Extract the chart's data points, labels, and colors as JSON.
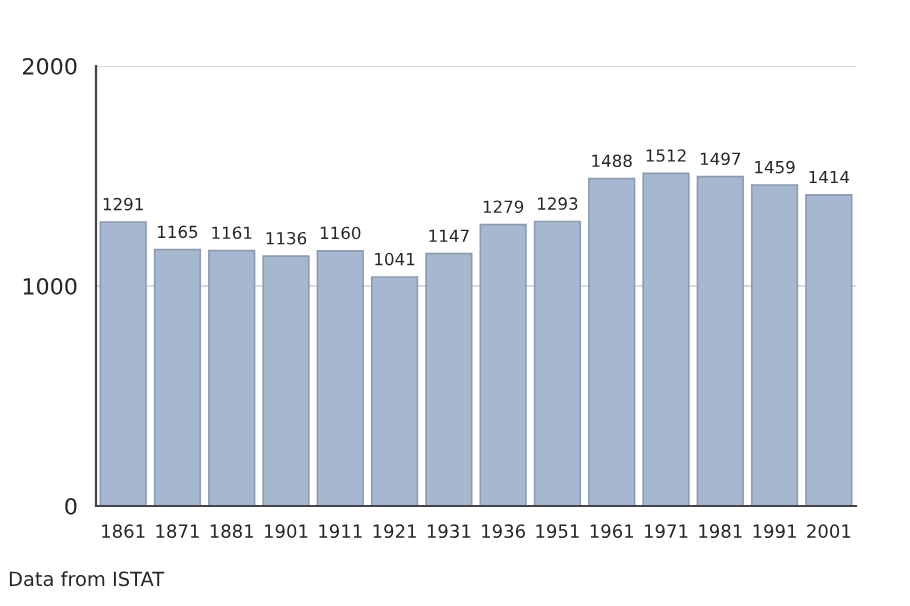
{
  "chart_data": {
    "type": "bar",
    "categories": [
      "1861",
      "1871",
      "1881",
      "1901",
      "1911",
      "1921",
      "1931",
      "1936",
      "1951",
      "1961",
      "1971",
      "1981",
      "1991",
      "2001"
    ],
    "values": [
      1291,
      1165,
      1161,
      1136,
      1160,
      1041,
      1147,
      1279,
      1293,
      1488,
      1512,
      1497,
      1459,
      1414
    ],
    "color": "#a5b8d0",
    "ylim": [
      0,
      2000
    ],
    "yticks": [
      0,
      1000,
      2000
    ],
    "grid": "y",
    "data_labels": true,
    "annotations": [
      "Data from ISTAT"
    ]
  }
}
